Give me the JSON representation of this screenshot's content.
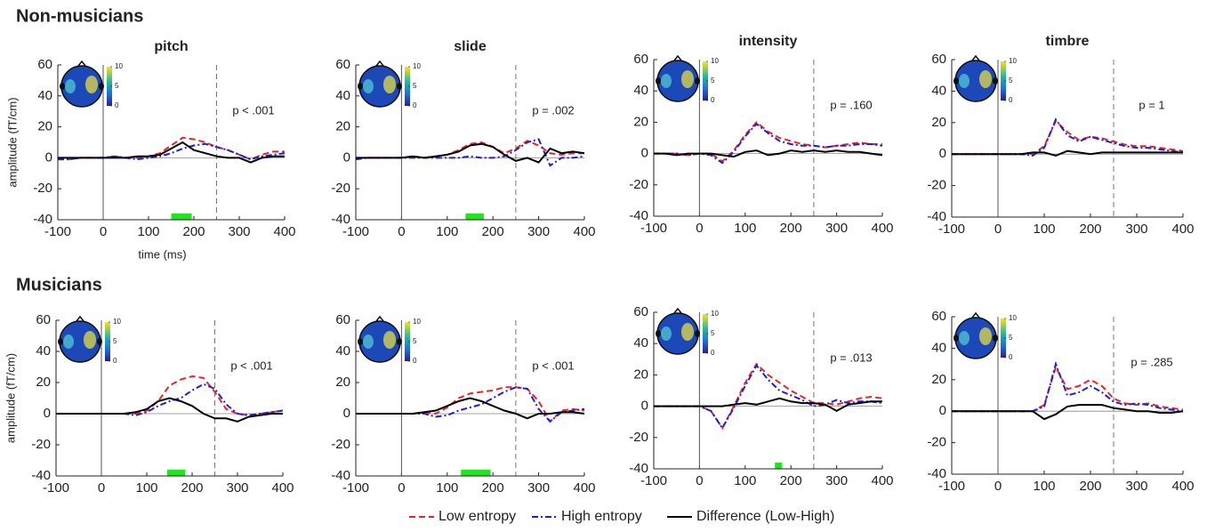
{
  "headings": [
    "Non-musicians",
    "Musicians"
  ],
  "chart_data": [
    {
      "type": "line",
      "title": "pitch",
      "annotation": "p < .001",
      "ylabel": "amplitude (fT/cm)",
      "xlabel": "time (ms)",
      "x": [
        -100,
        -75,
        -50,
        -25,
        0,
        25,
        50,
        75,
        100,
        125,
        150,
        175,
        200,
        225,
        250,
        275,
        300,
        325,
        350,
        375,
        400
      ],
      "series": [
        {
          "name": "Low entropy",
          "color": "#e8262a",
          "values": [
            -1,
            -1,
            0,
            0,
            0,
            1,
            0,
            0,
            1,
            3,
            8,
            13,
            12,
            10,
            7,
            5,
            2,
            -1,
            2,
            4,
            4
          ]
        },
        {
          "name": "High entropy",
          "color": "#1f1fd6",
          "values": [
            -1,
            -1,
            0,
            0,
            0,
            1,
            0,
            -1,
            0,
            1,
            3,
            6,
            8,
            9,
            7,
            5,
            2,
            -1,
            1,
            2,
            3
          ]
        },
        {
          "name": "Difference (Low-High)",
          "color": "#000000",
          "values": [
            0,
            0,
            0,
            0,
            0,
            0,
            0,
            1,
            1,
            2,
            6,
            10,
            5,
            3,
            1,
            0,
            0,
            -3,
            0,
            1,
            1
          ]
        }
      ],
      "xlim": [
        -100,
        400
      ],
      "xticks": [
        -100,
        0,
        100,
        200,
        300,
        400
      ],
      "ylim": [
        -40,
        60
      ],
      "yticks": [
        -40,
        -20,
        0,
        20,
        40,
        60
      ],
      "vlines": [
        0,
        250
      ],
      "sig_window": [
        150,
        195
      ],
      "colorbar_lim": [
        0,
        10
      ],
      "colorbar_ticks": [
        10,
        5,
        0
      ]
    },
    {
      "type": "line",
      "title": "slide",
      "annotation": "p = .002",
      "x": [
        -100,
        -75,
        -50,
        -25,
        0,
        25,
        50,
        75,
        100,
        125,
        150,
        175,
        200,
        225,
        250,
        275,
        300,
        325,
        350,
        375,
        400
      ],
      "series": [
        {
          "name": "Low entropy",
          "color": "#e8262a",
          "values": [
            -1,
            0,
            0,
            0,
            0,
            1,
            0,
            1,
            2,
            5,
            9,
            10,
            7,
            3,
            6,
            11,
            8,
            3,
            2,
            3,
            3
          ]
        },
        {
          "name": "High entropy",
          "color": "#1f1fd6",
          "values": [
            -1,
            0,
            0,
            0,
            0,
            0,
            0,
            0,
            0,
            0,
            1,
            0,
            0,
            1,
            5,
            10,
            12,
            -5,
            0,
            0,
            1
          ]
        },
        {
          "name": "Difference (Low-High)",
          "color": "#000000",
          "values": [
            0,
            0,
            0,
            0,
            0,
            1,
            0,
            1,
            2,
            4,
            8,
            9,
            7,
            2,
            -2,
            0,
            -3,
            6,
            3,
            4,
            3
          ]
        }
      ],
      "xlim": [
        -100,
        400
      ],
      "xticks": [
        -100,
        0,
        100,
        200,
        300,
        400
      ],
      "ylim": [
        -40,
        60
      ],
      "yticks": [
        -40,
        -20,
        0,
        20,
        40,
        60
      ],
      "vlines": [
        0,
        250
      ],
      "sig_window": [
        140,
        180
      ],
      "colorbar_lim": [
        0,
        10
      ],
      "colorbar_ticks": [
        10,
        5,
        0
      ]
    },
    {
      "type": "line",
      "title": "intensity",
      "annotation": "p = .160",
      "x": [
        -100,
        -75,
        -50,
        -25,
        0,
        25,
        50,
        75,
        100,
        125,
        150,
        175,
        200,
        225,
        250,
        275,
        300,
        325,
        350,
        375,
        400
      ],
      "series": [
        {
          "name": "Low entropy",
          "color": "#e8262a",
          "values": [
            0,
            0,
            0,
            -1,
            0,
            0,
            -5,
            2,
            12,
            20,
            14,
            10,
            8,
            6,
            5,
            4,
            5,
            6,
            7,
            6,
            6
          ]
        },
        {
          "name": "High entropy",
          "color": "#1f1fd6",
          "values": [
            0,
            0,
            0,
            -1,
            0,
            -1,
            -6,
            1,
            11,
            19,
            13,
            8,
            6,
            5,
            5,
            4,
            5,
            5,
            6,
            6,
            5
          ]
        },
        {
          "name": "Difference (Low-High)",
          "color": "#000000",
          "values": [
            0,
            0,
            -1,
            0,
            0,
            0,
            -1,
            -2,
            1,
            2,
            -1,
            0,
            2,
            1,
            2,
            1,
            2,
            1,
            1,
            0,
            -1
          ]
        }
      ],
      "xlim": [
        -100,
        400
      ],
      "xticks": [
        -100,
        0,
        100,
        200,
        300,
        400
      ],
      "ylim": [
        -40,
        60
      ],
      "yticks": [
        -40,
        -20,
        0,
        20,
        40,
        60
      ],
      "vlines": [
        0,
        250
      ],
      "colorbar_lim": [
        0,
        10
      ],
      "colorbar_ticks": [
        10,
        5,
        0
      ]
    },
    {
      "type": "line",
      "title": "timbre",
      "annotation": "p = 1",
      "x": [
        -100,
        -75,
        -50,
        -25,
        0,
        25,
        50,
        75,
        100,
        125,
        150,
        175,
        200,
        225,
        250,
        275,
        300,
        325,
        350,
        375,
        400
      ],
      "series": [
        {
          "name": "Low entropy",
          "color": "#e8262a",
          "values": [
            0,
            0,
            0,
            0,
            0,
            0,
            0,
            0,
            5,
            21,
            14,
            9,
            11,
            10,
            8,
            6,
            5,
            5,
            4,
            3,
            2
          ]
        },
        {
          "name": "High entropy",
          "color": "#1f1fd6",
          "values": [
            0,
            0,
            0,
            0,
            0,
            0,
            0,
            -1,
            4,
            22,
            12,
            8,
            11,
            9,
            7,
            5,
            4,
            4,
            3,
            2,
            1
          ]
        },
        {
          "name": "Difference (Low-High)",
          "color": "#000000",
          "values": [
            0,
            0,
            0,
            0,
            0,
            0,
            0,
            1,
            1,
            -1,
            2,
            1,
            0,
            1,
            1,
            1,
            1,
            1,
            1,
            1,
            1
          ]
        }
      ],
      "xlim": [
        -100,
        400
      ],
      "xticks": [
        -100,
        0,
        100,
        200,
        300,
        400
      ],
      "ylim": [
        -40,
        60
      ],
      "yticks": [
        -40,
        -20,
        0,
        20,
        40,
        60
      ],
      "vlines": [
        0,
        250
      ],
      "colorbar_lim": [
        0,
        10
      ],
      "colorbar_ticks": [
        10,
        5,
        0
      ]
    },
    {
      "type": "line",
      "annotation": "p < .001",
      "ylabel": "amplitude (fT/cm)",
      "x": [
        -100,
        -75,
        -50,
        -25,
        0,
        25,
        50,
        75,
        100,
        125,
        150,
        175,
        200,
        225,
        250,
        275,
        300,
        325,
        350,
        375,
        400
      ],
      "series": [
        {
          "name": "Low entropy",
          "color": "#e8262a",
          "values": [
            0,
            0,
            0,
            0,
            0,
            0,
            0,
            0,
            2,
            8,
            18,
            22,
            24,
            23,
            14,
            3,
            0,
            -1,
            0,
            1,
            2
          ]
        },
        {
          "name": "High entropy",
          "color": "#1f1fd6",
          "values": [
            0,
            0,
            0,
            0,
            0,
            0,
            0,
            -1,
            1,
            5,
            8,
            10,
            15,
            19,
            16,
            6,
            0,
            -1,
            0,
            1,
            2
          ]
        },
        {
          "name": "Difference (Low-High)",
          "color": "#000000",
          "values": [
            0,
            0,
            0,
            0,
            0,
            0,
            0,
            1,
            3,
            8,
            10,
            8,
            5,
            0,
            -3,
            -3,
            -5,
            -2,
            -1,
            0,
            0
          ]
        }
      ],
      "xlim": [
        -100,
        400
      ],
      "xticks": [
        -100,
        0,
        100,
        200,
        300,
        400
      ],
      "ylim": [
        -40,
        60
      ],
      "yticks": [
        -40,
        -20,
        0,
        20,
        40,
        60
      ],
      "vlines": [
        0,
        250
      ],
      "sig_window": [
        145,
        185
      ],
      "colorbar_lim": [
        0,
        10
      ],
      "colorbar_ticks": [
        10,
        5,
        0
      ]
    },
    {
      "type": "line",
      "annotation": "p < .001",
      "x": [
        -100,
        -75,
        -50,
        -25,
        0,
        25,
        50,
        75,
        100,
        125,
        150,
        175,
        200,
        225,
        250,
        275,
        300,
        325,
        350,
        375,
        400
      ],
      "series": [
        {
          "name": "Low entropy",
          "color": "#e8262a",
          "values": [
            0,
            0,
            0,
            0,
            0,
            0,
            1,
            0,
            4,
            10,
            13,
            14,
            15,
            17,
            17,
            16,
            8,
            -5,
            2,
            3,
            2
          ]
        },
        {
          "name": "High entropy",
          "color": "#1f1fd6",
          "values": [
            0,
            0,
            0,
            0,
            0,
            0,
            0,
            -2,
            -1,
            2,
            4,
            6,
            10,
            14,
            17,
            16,
            3,
            -5,
            1,
            2,
            3
          ]
        },
        {
          "name": "Difference (Low-High)",
          "color": "#000000",
          "values": [
            0,
            0,
            0,
            0,
            0,
            0,
            1,
            2,
            5,
            8,
            10,
            8,
            5,
            2,
            0,
            -3,
            0,
            0,
            1,
            1,
            0
          ]
        }
      ],
      "xlim": [
        -100,
        400
      ],
      "xticks": [
        -100,
        0,
        100,
        200,
        300,
        400
      ],
      "ylim": [
        -40,
        60
      ],
      "yticks": [
        -40,
        -20,
        0,
        20,
        40,
        60
      ],
      "vlines": [
        0,
        250
      ],
      "sig_window": [
        130,
        195
      ],
      "colorbar_lim": [
        0,
        10
      ],
      "colorbar_ticks": [
        10,
        5,
        0
      ]
    },
    {
      "type": "line",
      "annotation": "p = .013",
      "x": [
        -100,
        -75,
        -50,
        -25,
        0,
        25,
        50,
        75,
        100,
        125,
        150,
        175,
        200,
        225,
        250,
        275,
        300,
        325,
        350,
        375,
        400
      ],
      "series": [
        {
          "name": "Low entropy",
          "color": "#e8262a",
          "values": [
            0,
            0,
            0,
            0,
            0,
            -3,
            -14,
            0,
            15,
            27,
            20,
            15,
            10,
            6,
            2,
            2,
            1,
            3,
            5,
            6,
            5
          ]
        },
        {
          "name": "High entropy",
          "color": "#1f1fd6",
          "values": [
            0,
            0,
            0,
            0,
            0,
            -3,
            -14,
            -1,
            13,
            26,
            17,
            10,
            7,
            4,
            0,
            1,
            4,
            2,
            3,
            3,
            2
          ]
        },
        {
          "name": "Difference (Low-High)",
          "color": "#000000",
          "values": [
            0,
            0,
            0,
            0,
            0,
            0,
            0,
            1,
            2,
            1,
            3,
            5,
            3,
            2,
            2,
            1,
            -3,
            1,
            2,
            3,
            3
          ]
        }
      ],
      "xlim": [
        -100,
        400
      ],
      "xticks": [
        -100,
        0,
        100,
        200,
        300,
        400
      ],
      "ylim": [
        -40,
        60
      ],
      "yticks": [
        -40,
        -20,
        0,
        20,
        40,
        60
      ],
      "vlines": [
        0,
        250
      ],
      "sig_window": [
        165,
        180
      ],
      "colorbar_lim": [
        0,
        10
      ],
      "colorbar_ticks": [
        10,
        5,
        0
      ]
    },
    {
      "type": "line",
      "annotation": "p = .285",
      "x": [
        -100,
        -75,
        -50,
        -25,
        0,
        25,
        50,
        75,
        100,
        125,
        150,
        175,
        200,
        225,
        250,
        275,
        300,
        325,
        350,
        375,
        400
      ],
      "series": [
        {
          "name": "Low entropy",
          "color": "#e8262a",
          "values": [
            0,
            0,
            0,
            0,
            0,
            0,
            0,
            0,
            4,
            28,
            14,
            16,
            20,
            16,
            8,
            5,
            4,
            5,
            3,
            2,
            1
          ]
        },
        {
          "name": "High entropy",
          "color": "#1f1fd6",
          "values": [
            0,
            0,
            0,
            0,
            0,
            0,
            0,
            0,
            3,
            30,
            10,
            12,
            16,
            12,
            6,
            4,
            5,
            4,
            2,
            1,
            0
          ]
        },
        {
          "name": "Difference (Low-High)",
          "color": "#000000",
          "values": [
            0,
            0,
            0,
            0,
            0,
            0,
            0,
            0,
            -5,
            -2,
            3,
            4,
            4,
            4,
            2,
            1,
            0,
            0,
            -1,
            -1,
            0
          ]
        }
      ],
      "xlim": [
        -100,
        400
      ],
      "xticks": [
        -100,
        0,
        100,
        200,
        300,
        400
      ],
      "ylim": [
        -40,
        60
      ],
      "yticks": [
        -40,
        -20,
        0,
        20,
        40,
        60
      ],
      "vlines": [
        0,
        250
      ],
      "colorbar_lim": [
        0,
        10
      ],
      "colorbar_ticks": [
        10,
        5,
        0
      ]
    }
  ]
}
